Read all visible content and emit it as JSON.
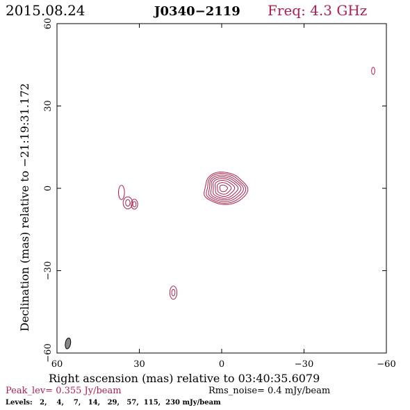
{
  "header": {
    "date": "2015.08.24",
    "source": "J0340−2119",
    "freq": "Freq: 4.3 GHz"
  },
  "footer": {
    "peak": "Peak_lev=  0.355 Jy/beam",
    "rms": "Rms_noise=  0.4 mJy/beam",
    "levels": "Levels:   2,    4,    7,   14,   29,   57,  115,  230 mJy/beam"
  },
  "colors": {
    "contour": "#b0204a",
    "accent": "#b0204a",
    "beam": "#888888",
    "text": "#000000"
  },
  "chart_data": {
    "type": "contour",
    "xlabel": "Right ascension (mas) relative to 03:40:35.6079",
    "ylabel": "Declination (mas) relative to −21:19:31.172",
    "xlim": [
      60,
      -60
    ],
    "ylim": [
      -60,
      60
    ],
    "x_ticks": [
      60,
      30,
      0,
      -30,
      -60
    ],
    "y_ticks": [
      -60,
      -30,
      0,
      30,
      60
    ],
    "x_tick_labels": [
      "60",
      "30",
      "0",
      "−30",
      "−60"
    ],
    "y_tick_labels": [
      "−60",
      "−30",
      "0",
      "30",
      "60"
    ],
    "levels_mJy_per_beam": [
      2,
      4,
      7,
      14,
      29,
      57,
      115,
      230
    ],
    "peak_Jy_per_beam": 0.355,
    "rms_noise_mJy_per_beam": 0.4,
    "core": {
      "x": -0.5,
      "y": 0,
      "contours": [
        {
          "rx": 7.8,
          "ry": 5.9
        },
        {
          "rx": 7.0,
          "ry": 5.4
        },
        {
          "rx": 6.2,
          "ry": 4.8
        },
        {
          "rx": 5.4,
          "ry": 4.2
        },
        {
          "rx": 4.5,
          "ry": 3.6
        },
        {
          "rx": 3.5,
          "ry": 2.9
        },
        {
          "rx": 2.5,
          "ry": 2.1
        },
        {
          "rx": 1.4,
          "ry": 1.2
        }
      ]
    },
    "components": [
      {
        "x": 36.5,
        "y": -1.5,
        "rx": 1.1,
        "ry": 2.6
      },
      {
        "x": 34.2,
        "y": -5.3,
        "rx": 1.7,
        "ry": 2.2
      },
      {
        "x": 34.2,
        "y": -5.3,
        "rx": 0.8,
        "ry": 1.2
      },
      {
        "x": 31.8,
        "y": -5.8,
        "rx": 1.2,
        "ry": 1.8
      },
      {
        "x": 31.8,
        "y": -5.8,
        "rx": 0.6,
        "ry": 1.0
      },
      {
        "x": 17.6,
        "y": -38.0,
        "rx": 1.3,
        "ry": 2.4
      },
      {
        "x": 17.6,
        "y": -38.0,
        "rx": 0.6,
        "ry": 1.2
      },
      {
        "x": -55.2,
        "y": 42.8,
        "rx": 0.6,
        "ry": 1.3
      }
    ],
    "beam": {
      "x": 56.0,
      "y": -56.5,
      "major_mas": 4.0,
      "minor_mas": 1.9,
      "pa_deg": 10
    }
  }
}
